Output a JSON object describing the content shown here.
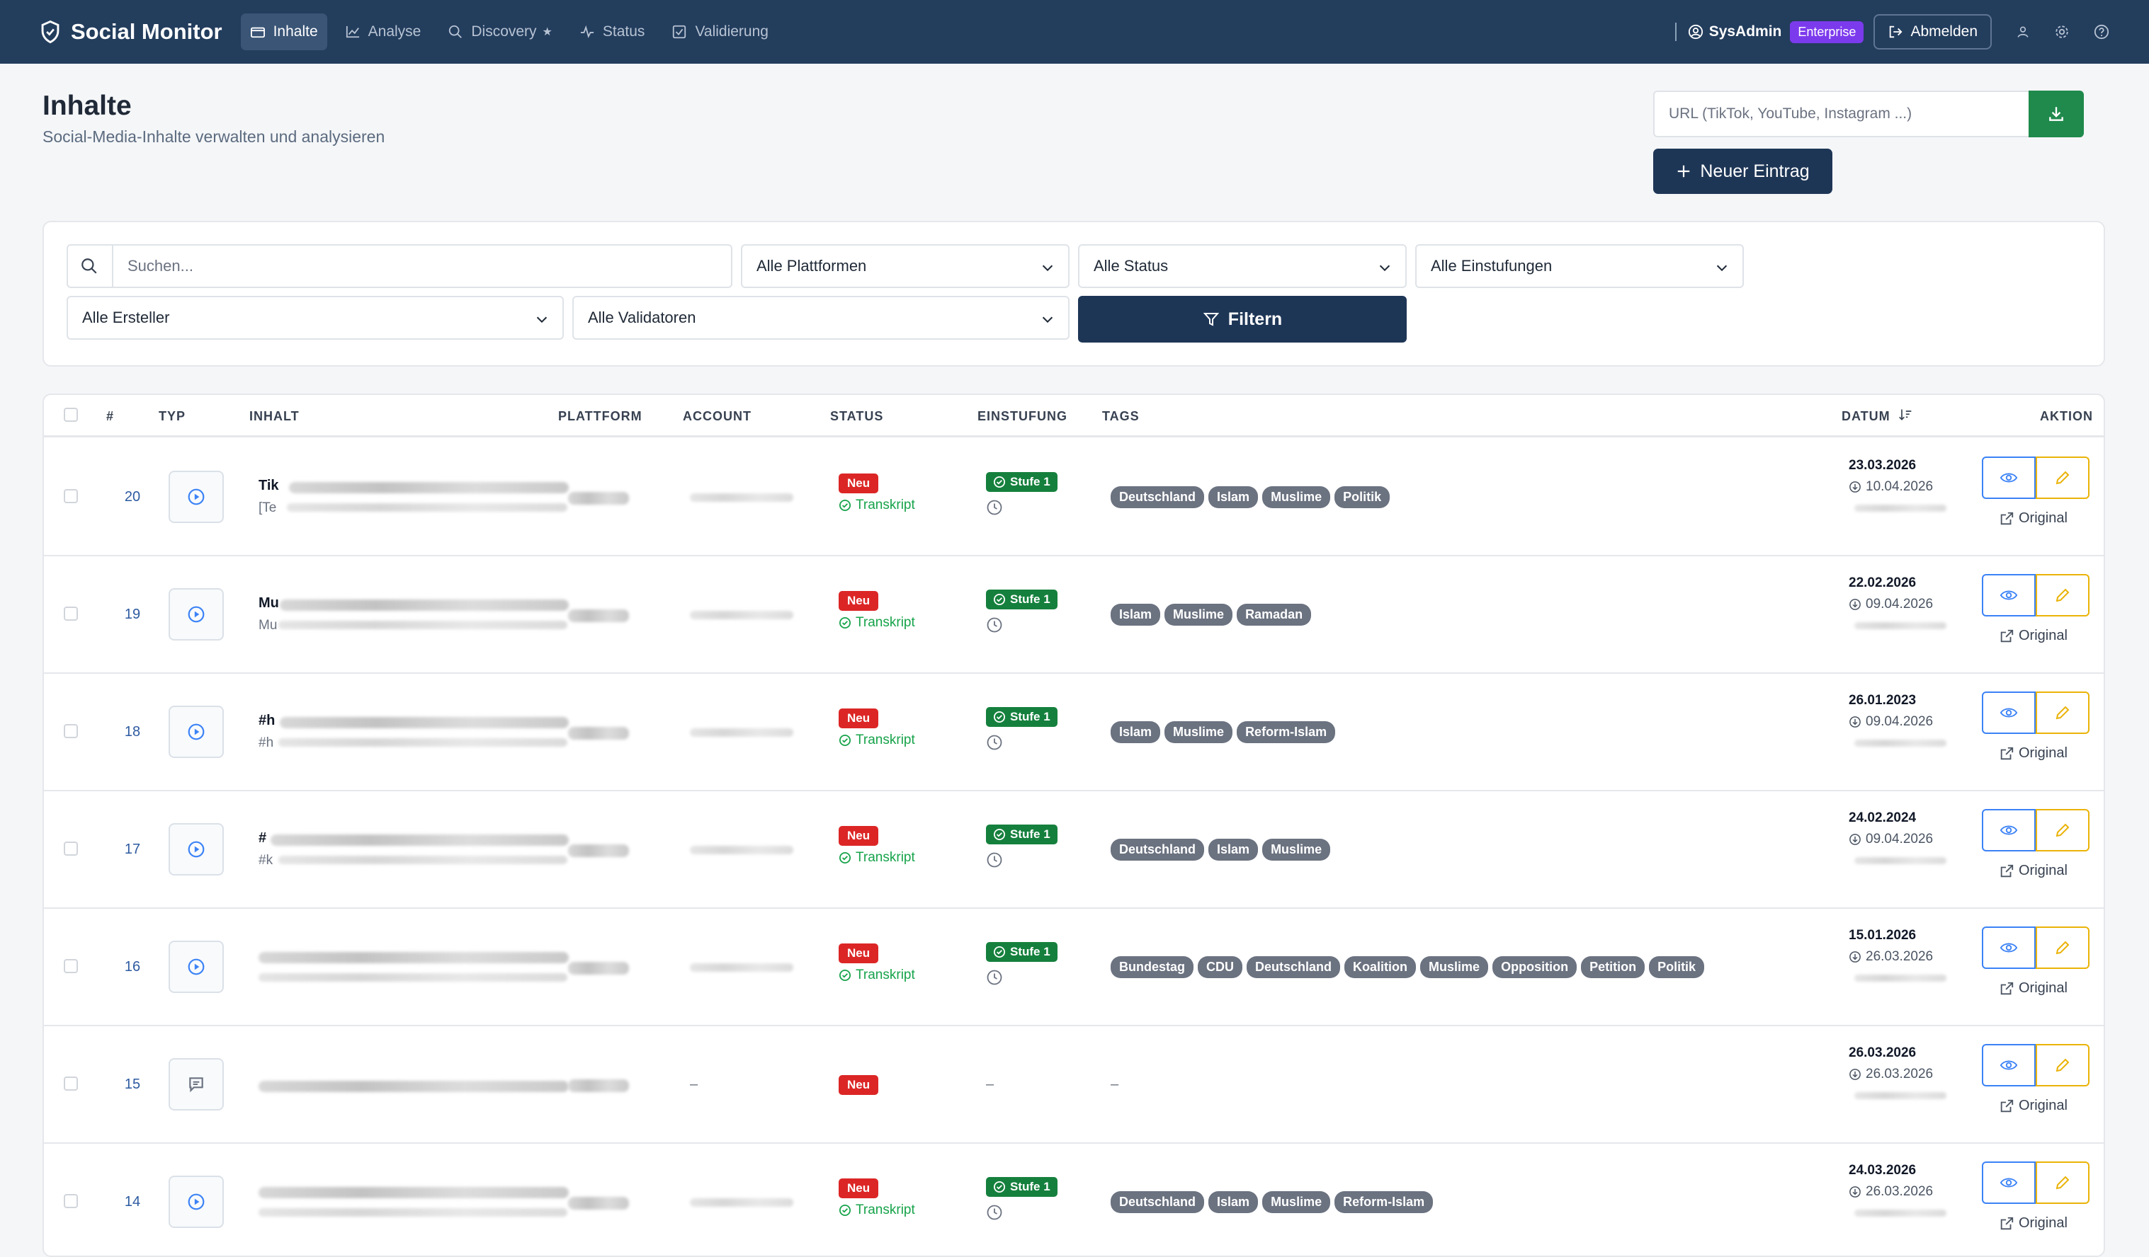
{
  "nav": {
    "brand": "Social Monitor",
    "items": [
      {
        "label": "Inhalte",
        "active": true,
        "icon": "folder-icon"
      },
      {
        "label": "Analyse",
        "active": false,
        "icon": "chart-icon"
      },
      {
        "label": "Discovery",
        "active": false,
        "icon": "search-icon",
        "suffix": "★"
      },
      {
        "label": "Status",
        "active": false,
        "icon": "activity-icon"
      },
      {
        "label": "Validierung",
        "active": false,
        "icon": "check-square-icon"
      }
    ],
    "user": "SysAdmin",
    "plan": "Enterprise",
    "logout": "Abmelden"
  },
  "page": {
    "title": "Inhalte",
    "subtitle": "Social-Media-Inhalte verwalten und analysieren",
    "url_placeholder": "URL (TikTok, YouTube, Instagram ...)",
    "new_entry": "Neuer Eintrag"
  },
  "filters": {
    "search_placeholder": "Suchen...",
    "platform": "Alle Plattformen",
    "status": "Alle Status",
    "rating": "Alle Einstufungen",
    "creator": "Alle Ersteller",
    "validator": "Alle Validatoren",
    "apply": "Filtern"
  },
  "table": {
    "headers": {
      "num": "#",
      "type": "TYP",
      "content": "INHALT",
      "platform": "PLATTFORM",
      "account": "ACCOUNT",
      "status": "STATUS",
      "rating": "EINSTUFUNG",
      "tags": "TAGS",
      "date": "DATUM",
      "action": "AKTION"
    },
    "status_new": "Neu",
    "transcript": "Transkript",
    "stage": "Stufe 1",
    "original": "Original",
    "dash": "–",
    "rows": [
      {
        "id": "20",
        "type": "video",
        "title_prefix": "Tik",
        "sub_prefix": "[Te",
        "tags": [
          "Deutschland",
          "Islam",
          "Muslime",
          "Politik"
        ],
        "date": "23.03.2026",
        "date2": "10.04.2026",
        "rated": true,
        "transcript": true
      },
      {
        "id": "19",
        "type": "video",
        "title_prefix": "Mu",
        "sub_prefix": "Mu",
        "tags": [
          "Islam",
          "Muslime",
          "Ramadan"
        ],
        "date": "22.02.2026",
        "date2": "09.04.2026",
        "rated": true,
        "transcript": true
      },
      {
        "id": "18",
        "type": "video",
        "title_prefix": "#h",
        "sub_prefix": "#h",
        "tags": [
          "Islam",
          "Muslime",
          "Reform-Islam"
        ],
        "date": "26.01.2023",
        "date2": "09.04.2026",
        "rated": true,
        "transcript": true
      },
      {
        "id": "17",
        "type": "video",
        "title_prefix": "#",
        "sub_prefix": "#k",
        "tags": [
          "Deutschland",
          "Islam",
          "Muslime"
        ],
        "date": "24.02.2024",
        "date2": "09.04.2026",
        "rated": true,
        "transcript": true
      },
      {
        "id": "16",
        "type": "video",
        "title_prefix": "",
        "sub_prefix": "",
        "tags": [
          "Bundestag",
          "CDU",
          "Deutschland",
          "Koalition",
          "Muslime",
          "Opposition",
          "Petition",
          "Politik"
        ],
        "date": "15.01.2026",
        "date2": "26.03.2026",
        "rated": true,
        "transcript": true
      },
      {
        "id": "15",
        "type": "text",
        "title_prefix": "",
        "sub_prefix": "",
        "tags": [],
        "date": "26.03.2026",
        "date2": "26.03.2026",
        "rated": false,
        "transcript": false
      },
      {
        "id": "14",
        "type": "video",
        "title_prefix": "",
        "sub_prefix": "",
        "tags": [
          "Deutschland",
          "Islam",
          "Muslime",
          "Reform-Islam"
        ],
        "date": "24.03.2026",
        "date2": "26.03.2026",
        "rated": true,
        "transcript": true
      }
    ]
  },
  "colors": {
    "nav": "#233d5d",
    "primary": "#1e3656",
    "green": "#15803d",
    "red": "#dc2626",
    "tag": "#6b7280"
  }
}
